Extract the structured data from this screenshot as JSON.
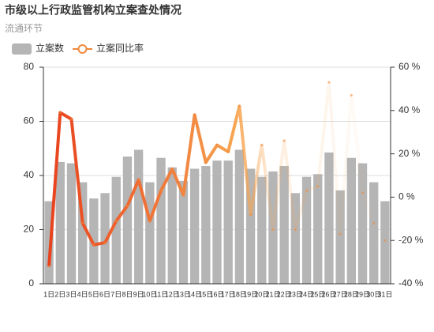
{
  "chart_data": {
    "type": "bar-line",
    "title": "市级以上行政监管机构立案查处情况",
    "subtitle": "流通环节",
    "categories": [
      "1日",
      "2日",
      "3日",
      "4日",
      "5日",
      "6日",
      "7日",
      "8日",
      "9日",
      "10日",
      "11日",
      "12日",
      "13日",
      "14日",
      "15日",
      "16日",
      "17日",
      "18日",
      "19日",
      "20日",
      "21日",
      "22日",
      "23日",
      "24日",
      "25日",
      "26日",
      "27日",
      "28日",
      "29日",
      "30日",
      "31日"
    ],
    "series": [
      {
        "name": "立案数",
        "color": "#b5b5b5",
        "values": [
          30.5,
          45,
          44.5,
          37.5,
          31.5,
          33.5,
          39.5,
          47,
          49.5,
          37.5,
          46.5,
          43,
          38,
          42.5,
          43.5,
          45.5,
          45.5,
          49.5,
          42.5,
          39.5,
          41.5,
          43.5,
          33.5,
          39.5,
          40.5,
          48.5,
          34.5,
          46.5,
          44.5,
          37.5,
          30.5
        ]
      },
      {
        "name": "立案同比率",
        "color": "#f08a3c",
        "axis": "y2",
        "values": [
          -32,
          39,
          36,
          -12,
          -22,
          -21,
          -11,
          -4,
          8,
          -11,
          3,
          13,
          1,
          38,
          16,
          24,
          21,
          42,
          -8,
          24,
          -15,
          26,
          -15,
          3,
          5,
          53,
          -17,
          47,
          2,
          -12,
          -20
        ]
      }
    ],
    "ylim": [
      0,
      80
    ],
    "yticks": [
      0,
      20,
      40,
      60,
      80
    ],
    "y2lim": [
      -40,
      60
    ],
    "y2ticks": [
      {
        "value": -40,
        "label": "-40 %"
      },
      {
        "value": -20,
        "label": "-20 %"
      },
      {
        "value": 0,
        "label": "0 %"
      },
      {
        "value": 20,
        "label": "20 %"
      },
      {
        "value": 40,
        "label": "40 %"
      },
      {
        "value": 60,
        "label": "60 %"
      }
    ],
    "grid": true
  }
}
